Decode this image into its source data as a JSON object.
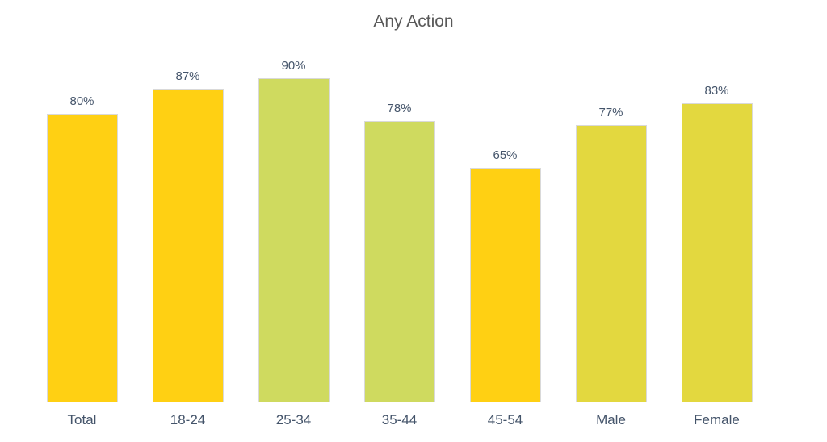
{
  "title": "Any Action",
  "colors": {
    "background": "#FFFFFF",
    "title_text": "#595959",
    "label_text": "#44546A",
    "axis_line": "#C8C8C8",
    "bar_border": "#D9D9D9",
    "gold": "#FFD013",
    "green": "#CFDA5F",
    "lime_yellow": "#E3D83F"
  },
  "chart_data": {
    "type": "bar",
    "title": "Any Action",
    "categories": [
      "Total",
      "18-24",
      "25-34",
      "35-44",
      "45-54",
      "Male",
      "Female"
    ],
    "values": [
      80,
      87,
      90,
      78,
      65,
      77,
      83
    ],
    "value_labels": [
      "80%",
      "87%",
      "90%",
      "78%",
      "65%",
      "77%",
      "83%"
    ],
    "bar_colors": [
      "#FFD013",
      "#FFD013",
      "#CFDA5F",
      "#CFDA5F",
      "#FFD013",
      "#E3D83F",
      "#E3D83F"
    ],
    "xlabel": "",
    "ylabel": "",
    "ylim": [
      0,
      100
    ],
    "grid": false,
    "legend": false,
    "data_labels_position": "above-bar",
    "axis_line_visible": true
  }
}
